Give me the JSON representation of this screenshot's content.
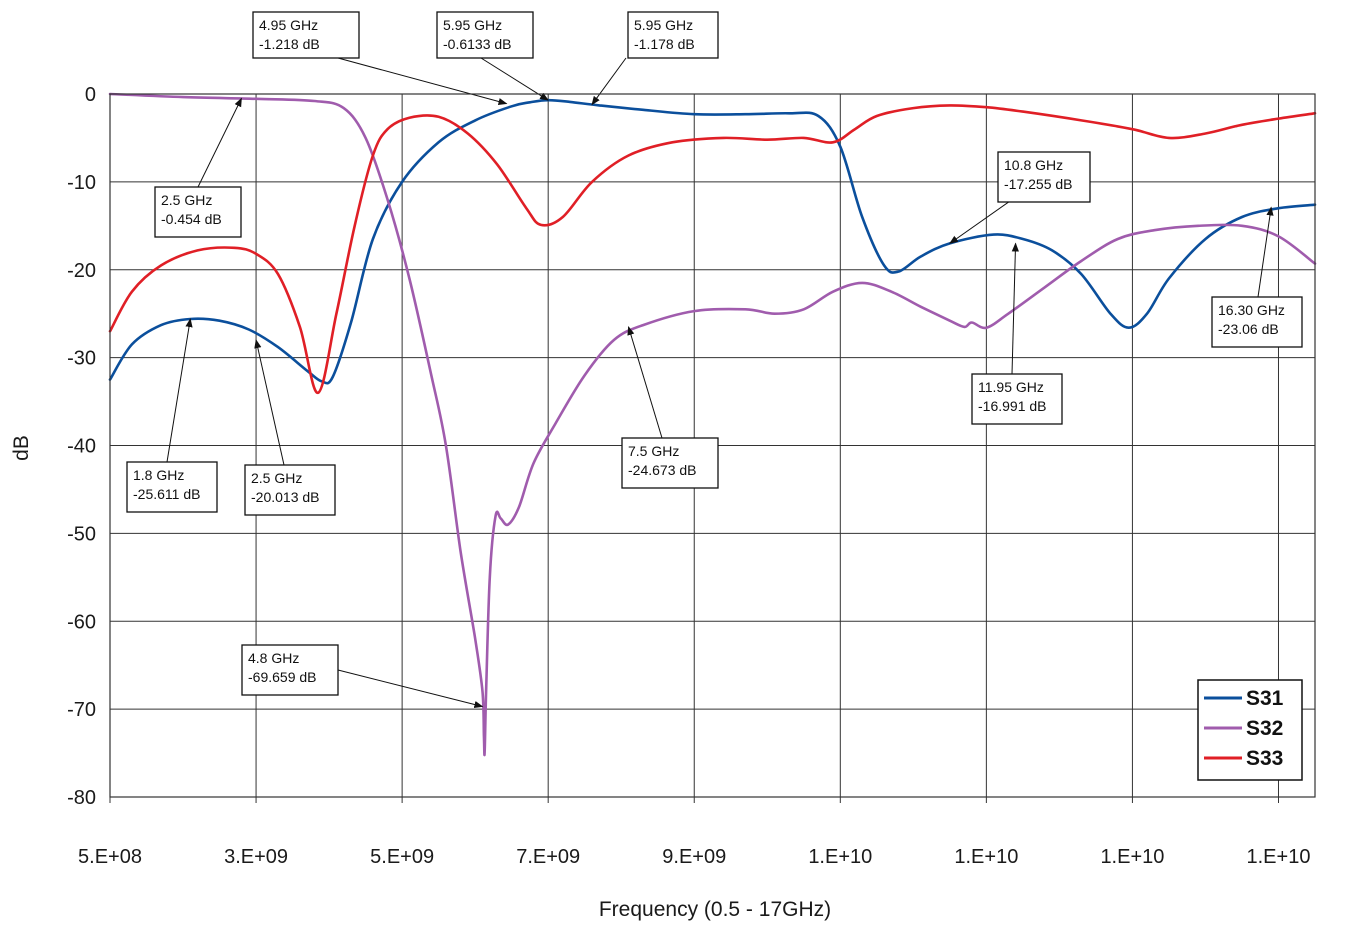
{
  "chart_data": {
    "type": "line",
    "xlabel": "Frequency (0.5 - 17GHz)",
    "ylabel": "dB",
    "xlim": [
      0.5,
      17
    ],
    "ylim": [
      -80,
      0
    ],
    "x_tick_values": [
      0.5,
      2.5,
      4.5,
      6.5,
      8.5,
      10.5,
      12.5,
      14.5,
      16.5
    ],
    "x_tick_labels": [
      "5.E+08",
      "3.E+09",
      "5.E+09",
      "7.E+09",
      "9.E+09",
      "1.E+10",
      "1.E+10",
      "1.E+10",
      "1.E+10"
    ],
    "y_ticks": [
      0,
      -10,
      -20,
      -30,
      -40,
      -50,
      -60,
      -70,
      -80
    ],
    "y_tick_labels": [
      "0",
      "-10",
      "-20",
      "-30",
      "-40",
      "-50",
      "-60",
      "-70",
      "-80"
    ],
    "grid": true,
    "legend_position": "bottom-right",
    "colors": {
      "S31": "#0b4f9c",
      "S32": "#a05cad",
      "S33": "#e01f26"
    },
    "series": [
      {
        "name": "S31",
        "color": "#0b4f9c",
        "points": [
          [
            0.5,
            -32.5
          ],
          [
            0.8,
            -28.5
          ],
          [
            1.2,
            -26.3
          ],
          [
            1.6,
            -25.6
          ],
          [
            2.0,
            -25.8
          ],
          [
            2.4,
            -26.8
          ],
          [
            2.8,
            -28.8
          ],
          [
            3.2,
            -31.5
          ],
          [
            3.4,
            -32.7
          ],
          [
            3.55,
            -32.2
          ],
          [
            3.8,
            -26.0
          ],
          [
            4.1,
            -16.5
          ],
          [
            4.5,
            -10.0
          ],
          [
            5.0,
            -5.5
          ],
          [
            5.5,
            -3.0
          ],
          [
            6.0,
            -1.4
          ],
          [
            6.25,
            -0.95
          ],
          [
            6.5,
            -0.7
          ],
          [
            6.8,
            -0.9
          ],
          [
            7.2,
            -1.3
          ],
          [
            7.8,
            -1.8
          ],
          [
            8.5,
            -2.3
          ],
          [
            9.2,
            -2.3
          ],
          [
            9.8,
            -2.2
          ],
          [
            10.2,
            -2.5
          ],
          [
            10.5,
            -6.0
          ],
          [
            10.8,
            -14.0
          ],
          [
            11.1,
            -19.5
          ],
          [
            11.3,
            -20.2
          ],
          [
            11.6,
            -18.5
          ],
          [
            12.0,
            -17.0
          ],
          [
            12.6,
            -16.0
          ],
          [
            13.0,
            -16.5
          ],
          [
            13.4,
            -17.8
          ],
          [
            13.8,
            -20.5
          ],
          [
            14.2,
            -25.0
          ],
          [
            14.45,
            -26.6
          ],
          [
            14.7,
            -25.0
          ],
          [
            15.0,
            -21.0
          ],
          [
            15.5,
            -16.5
          ],
          [
            16.0,
            -14.0
          ],
          [
            16.5,
            -13.0
          ],
          [
            17.0,
            -12.6
          ]
        ]
      },
      {
        "name": "S32",
        "color": "#a05cad",
        "points": [
          [
            0.5,
            0.0
          ],
          [
            1.5,
            -0.35
          ],
          [
            2.5,
            -0.55
          ],
          [
            3.3,
            -0.8
          ],
          [
            3.7,
            -1.6
          ],
          [
            4.0,
            -5.0
          ],
          [
            4.3,
            -12.0
          ],
          [
            4.6,
            -21.0
          ],
          [
            4.9,
            -32.0
          ],
          [
            5.1,
            -40.0
          ],
          [
            5.3,
            -52.0
          ],
          [
            5.5,
            -62.0
          ],
          [
            5.6,
            -68.0
          ],
          [
            5.62,
            -73.0
          ],
          [
            5.63,
            -75.0
          ],
          [
            5.65,
            -68.0
          ],
          [
            5.7,
            -55.0
          ],
          [
            5.78,
            -48.0
          ],
          [
            5.85,
            -48.3
          ],
          [
            5.95,
            -49.0
          ],
          [
            6.1,
            -47.0
          ],
          [
            6.3,
            -42.0
          ],
          [
            6.6,
            -37.5
          ],
          [
            7.0,
            -32.0
          ],
          [
            7.4,
            -28.0
          ],
          [
            7.8,
            -26.3
          ],
          [
            8.5,
            -24.7
          ],
          [
            9.2,
            -24.5
          ],
          [
            9.6,
            -25.0
          ],
          [
            10.0,
            -24.5
          ],
          [
            10.4,
            -22.5
          ],
          [
            10.8,
            -21.5
          ],
          [
            11.2,
            -22.5
          ],
          [
            11.6,
            -24.2
          ],
          [
            12.0,
            -25.8
          ],
          [
            12.2,
            -26.5
          ],
          [
            12.3,
            -26.0
          ],
          [
            12.5,
            -26.6
          ],
          [
            12.8,
            -25.0
          ],
          [
            13.3,
            -22.0
          ],
          [
            13.8,
            -19.0
          ],
          [
            14.3,
            -16.5
          ],
          [
            14.8,
            -15.5
          ],
          [
            15.4,
            -15.0
          ],
          [
            16.0,
            -15.0
          ],
          [
            16.5,
            -16.2
          ],
          [
            17.0,
            -19.3
          ]
        ]
      },
      {
        "name": "S33",
        "color": "#e01f26",
        "points": [
          [
            0.5,
            -27.0
          ],
          [
            0.8,
            -22.5
          ],
          [
            1.2,
            -19.5
          ],
          [
            1.7,
            -17.8
          ],
          [
            2.2,
            -17.5
          ],
          [
            2.5,
            -18.2
          ],
          [
            2.8,
            -20.5
          ],
          [
            3.1,
            -26.5
          ],
          [
            3.35,
            -34.0
          ],
          [
            3.6,
            -25.0
          ],
          [
            3.85,
            -15.0
          ],
          [
            4.1,
            -7.0
          ],
          [
            4.3,
            -4.0
          ],
          [
            4.6,
            -2.7
          ],
          [
            5.0,
            -2.6
          ],
          [
            5.4,
            -4.5
          ],
          [
            5.8,
            -8.0
          ],
          [
            6.2,
            -13.0
          ],
          [
            6.4,
            -14.9
          ],
          [
            6.7,
            -14.0
          ],
          [
            7.1,
            -10.0
          ],
          [
            7.6,
            -7.0
          ],
          [
            8.2,
            -5.5
          ],
          [
            8.9,
            -5.0
          ],
          [
            9.5,
            -5.2
          ],
          [
            10.0,
            -5.0
          ],
          [
            10.4,
            -5.5
          ],
          [
            10.7,
            -4.0
          ],
          [
            11.0,
            -2.5
          ],
          [
            11.5,
            -1.6
          ],
          [
            12.0,
            -1.3
          ],
          [
            12.5,
            -1.5
          ],
          [
            13.0,
            -2.0
          ],
          [
            13.8,
            -3.0
          ],
          [
            14.5,
            -4.0
          ],
          [
            15.0,
            -5.0
          ],
          [
            15.5,
            -4.5
          ],
          [
            16.0,
            -3.5
          ],
          [
            16.5,
            -2.8
          ],
          [
            17.0,
            -2.2
          ]
        ]
      }
    ],
    "annotations": [
      {
        "id": "a1",
        "lines": [
          "4.95 GHz",
          "-1.218 dB"
        ],
        "point": [
          5.93,
          -1.1
        ]
      },
      {
        "id": "a2",
        "lines": [
          "5.95 GHz",
          "-0.6133 dB"
        ],
        "point": [
          6.5,
          -0.7
        ]
      },
      {
        "id": "a3",
        "lines": [
          "5.95 GHz",
          "-1.178 dB"
        ],
        "point": [
          7.1,
          -1.2
        ]
      },
      {
        "id": "a4",
        "lines": [
          "2.5 GHz",
          "-0.454 dB"
        ],
        "point": [
          2.3,
          -0.5
        ]
      },
      {
        "id": "a5",
        "lines": [
          "1.8 GHz",
          "-25.611 dB"
        ],
        "point": [
          1.6,
          -25.6
        ]
      },
      {
        "id": "a6",
        "lines": [
          "2.5 GHz",
          "-20.013 dB"
        ],
        "point": [
          2.5,
          -28.0
        ]
      },
      {
        "id": "a7",
        "lines": [
          "4.8 GHz",
          "-69.659 dB"
        ],
        "point": [
          5.6,
          -69.7
        ]
      },
      {
        "id": "a8",
        "lines": [
          "7.5 GHz",
          "-24.673 dB"
        ],
        "point": [
          7.6,
          -26.5
        ]
      },
      {
        "id": "a9",
        "lines": [
          "10.8 GHz",
          "-17.255 dB"
        ],
        "point": [
          12.0,
          -17.0
        ]
      },
      {
        "id": "a10",
        "lines": [
          "11.95 GHz",
          "-16.991 dB"
        ],
        "point": [
          12.9,
          -17.0
        ]
      },
      {
        "id": "a11",
        "lines": [
          "16.30 GHz",
          "-23.06 dB"
        ],
        "point": [
          16.4,
          -12.9
        ]
      }
    ]
  }
}
